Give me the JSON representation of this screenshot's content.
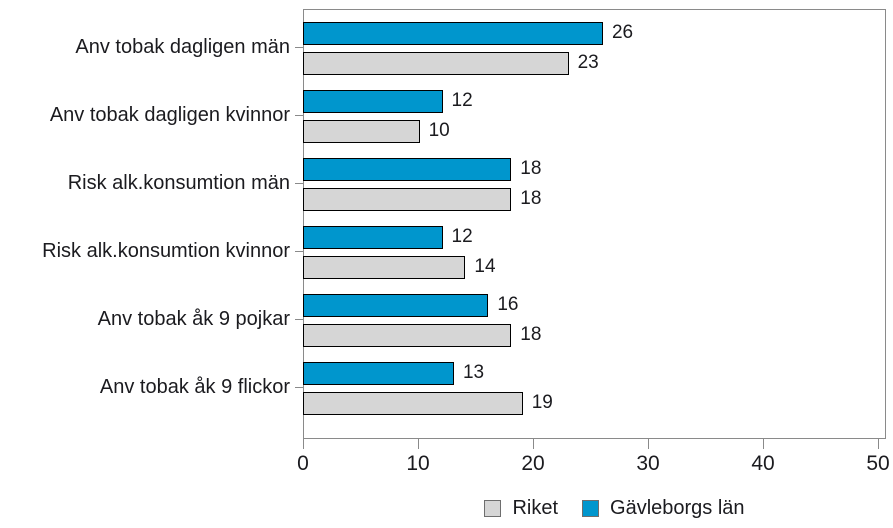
{
  "chart_data": {
    "type": "bar",
    "orientation": "horizontal",
    "title": "",
    "xlabel": "",
    "ylabel": "",
    "categories": [
      "Anv tobak dagligen män",
      "Anv tobak dagligen kvinnor",
      "Risk alk.konsumtion män",
      "Risk alk.konsumtion kvinnor",
      "Anv tobak åk 9 pojkar",
      "Anv tobak åk 9 flickor"
    ],
    "series": [
      {
        "name": "Gävleborgs län",
        "color": "#0096CD",
        "values": [
          26,
          12,
          18,
          12,
          16,
          13
        ]
      },
      {
        "name": "Riket",
        "color": "#D6D6D6",
        "values": [
          23,
          10,
          18,
          14,
          18,
          19
        ]
      }
    ],
    "bar_order_in_group": [
      "Gävleborgs län",
      "Riket"
    ],
    "value_labels_shown": true,
    "x_ticks": [
      "0",
      "10",
      "20",
      "30",
      "40",
      "50"
    ],
    "xlim": [
      0,
      50.7
    ],
    "grid": false,
    "legend_position": "bottom",
    "legend": [
      {
        "label": "Riket",
        "color": "#D6D6D6"
      },
      {
        "label": "Gävleborgs län",
        "color": "#0096CD"
      }
    ],
    "colors": {
      "bar_border": "#000000",
      "axis": "#8a8a8a",
      "text": "#1b1b1f",
      "background": "#ffffff"
    }
  }
}
